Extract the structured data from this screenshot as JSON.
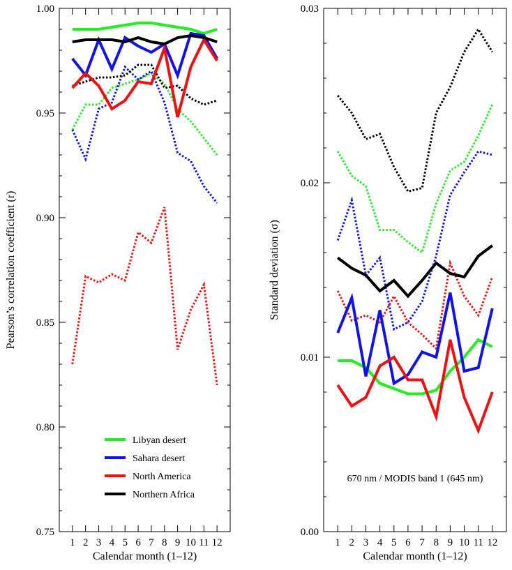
{
  "chart_data": [
    {
      "type": "line",
      "xlabel": "Calendar month (1–12)",
      "ylabel": "Pearson’s correlation coefficient (r)",
      "x": [
        1,
        2,
        3,
        4,
        5,
        6,
        7,
        8,
        9,
        10,
        11,
        12
      ],
      "xlim": [
        0,
        13
      ],
      "ylim": [
        0.75,
        1.0
      ],
      "yticks": [
        0.75,
        0.8,
        0.85,
        0.9,
        0.95,
        1.0
      ],
      "ytick_labels": [
        "0.75",
        "0.80",
        "0.85",
        "0.90",
        "0.95",
        "1.00"
      ],
      "xtick_labels": [
        "1",
        "2",
        "3",
        "4",
        "5",
        "6",
        "7",
        "8",
        "9",
        "10",
        "11",
        "12"
      ],
      "grid": false,
      "legend_position": "bottom-center",
      "legend": [
        {
          "label": "Libyan desert",
          "color": "#22ee22"
        },
        {
          "label": "Sahara desert",
          "color": "#1111ee"
        },
        {
          "label": "North America",
          "color": "#ee1111"
        },
        {
          "label": "Northern Africa",
          "color": "#000000"
        }
      ],
      "series": [
        {
          "name": "Libyan desert",
          "style": "solid",
          "color": "#22ee22",
          "values": [
            0.99,
            0.99,
            0.99,
            0.991,
            0.992,
            0.993,
            0.993,
            0.992,
            0.991,
            0.99,
            0.988,
            0.99
          ]
        },
        {
          "name": "Sahara desert",
          "style": "solid",
          "color": "#1111ee",
          "values": [
            0.976,
            0.968,
            0.985,
            0.971,
            0.986,
            0.982,
            0.979,
            0.983,
            0.968,
            0.988,
            0.987,
            0.976
          ]
        },
        {
          "name": "North America",
          "style": "solid",
          "color": "#ee1111",
          "values": [
            0.962,
            0.969,
            0.963,
            0.952,
            0.956,
            0.965,
            0.964,
            0.981,
            0.948,
            0.972,
            0.985,
            0.975
          ]
        },
        {
          "name": "Northern Africa",
          "style": "solid",
          "color": "#000000",
          "values": [
            0.984,
            0.985,
            0.985,
            0.985,
            0.984,
            0.986,
            0.984,
            0.983,
            0.986,
            0.987,
            0.986,
            0.984
          ]
        },
        {
          "name": "Libyan desert",
          "style": "dotted",
          "color": "#22ee22",
          "values": [
            0.942,
            0.954,
            0.954,
            0.962,
            0.964,
            0.966,
            0.969,
            0.964,
            0.952,
            0.946,
            0.938,
            0.93
          ]
        },
        {
          "name": "Sahara desert",
          "style": "dotted",
          "color": "#1111ee",
          "values": [
            0.942,
            0.928,
            0.952,
            0.955,
            0.972,
            0.966,
            0.97,
            0.955,
            0.931,
            0.927,
            0.915,
            0.907
          ]
        },
        {
          "name": "North America",
          "style": "dotted",
          "color": "#ee1111",
          "values": [
            0.83,
            0.872,
            0.869,
            0.873,
            0.87,
            0.893,
            0.888,
            0.905,
            0.837,
            0.856,
            0.868,
            0.82
          ]
        },
        {
          "name": "Northern Africa",
          "style": "dotted",
          "color": "#000000",
          "values": [
            0.963,
            0.965,
            0.967,
            0.967,
            0.968,
            0.973,
            0.973,
            0.962,
            0.963,
            0.957,
            0.954,
            0.956
          ]
        }
      ]
    },
    {
      "type": "line",
      "xlabel": "Calendar month (1–12)",
      "ylabel": "Standard deviation (σ)",
      "annotation": "670 nm / MODIS band 1 (645 nm)",
      "x": [
        1,
        2,
        3,
        4,
        5,
        6,
        7,
        8,
        9,
        10,
        11,
        12
      ],
      "xlim": [
        0,
        13
      ],
      "ylim": [
        0.0,
        0.03
      ],
      "yticks": [
        0.0,
        0.01,
        0.02,
        0.03
      ],
      "ytick_labels": [
        "0.00",
        "0.01",
        "0.02",
        "0.03"
      ],
      "xtick_labels": [
        "1",
        "2",
        "3",
        "4",
        "5",
        "6",
        "7",
        "8",
        "9",
        "10",
        "11",
        "12"
      ],
      "grid": false,
      "series": [
        {
          "name": "Libyan desert",
          "style": "solid",
          "color": "#22ee22",
          "values": [
            0.0098,
            0.0098,
            0.0094,
            0.0085,
            0.0082,
            0.0079,
            0.0079,
            0.0081,
            0.0092,
            0.01,
            0.011,
            0.0106
          ]
        },
        {
          "name": "Sahara desert",
          "style": "solid",
          "color": "#1111ee",
          "values": [
            0.0114,
            0.0134,
            0.0089,
            0.0127,
            0.0085,
            0.009,
            0.0103,
            0.01,
            0.0137,
            0.0092,
            0.0094,
            0.0128
          ]
        },
        {
          "name": "North America",
          "style": "solid",
          "color": "#ee1111",
          "values": [
            0.0084,
            0.0072,
            0.0077,
            0.0095,
            0.01,
            0.0087,
            0.0087,
            0.0066,
            0.011,
            0.0077,
            0.0058,
            0.008
          ]
        },
        {
          "name": "Northern Africa",
          "style": "solid",
          "color": "#000000",
          "values": [
            0.0157,
            0.0151,
            0.0147,
            0.0138,
            0.0144,
            0.0135,
            0.0144,
            0.0154,
            0.0148,
            0.0146,
            0.0158,
            0.0164
          ]
        },
        {
          "name": "Libyan desert",
          "style": "dotted",
          "color": "#22ee22",
          "values": [
            0.0218,
            0.0204,
            0.0198,
            0.0173,
            0.0173,
            0.0166,
            0.016,
            0.0188,
            0.0207,
            0.0212,
            0.0227,
            0.0245
          ]
        },
        {
          "name": "Sahara desert",
          "style": "dotted",
          "color": "#1111ee",
          "values": [
            0.0167,
            0.019,
            0.0147,
            0.0157,
            0.0116,
            0.012,
            0.0132,
            0.0158,
            0.0193,
            0.0206,
            0.0218,
            0.0216
          ]
        },
        {
          "name": "North America",
          "style": "dotted",
          "color": "#ee1111",
          "values": [
            0.0138,
            0.0121,
            0.0124,
            0.012,
            0.0135,
            0.012,
            0.0113,
            0.0105,
            0.0154,
            0.0135,
            0.0124,
            0.0146
          ]
        },
        {
          "name": "Northern Africa",
          "style": "dotted",
          "color": "#000000",
          "values": [
            0.025,
            0.024,
            0.0225,
            0.0228,
            0.0209,
            0.0195,
            0.0197,
            0.024,
            0.0255,
            0.0275,
            0.0288,
            0.0275
          ]
        }
      ]
    }
  ]
}
